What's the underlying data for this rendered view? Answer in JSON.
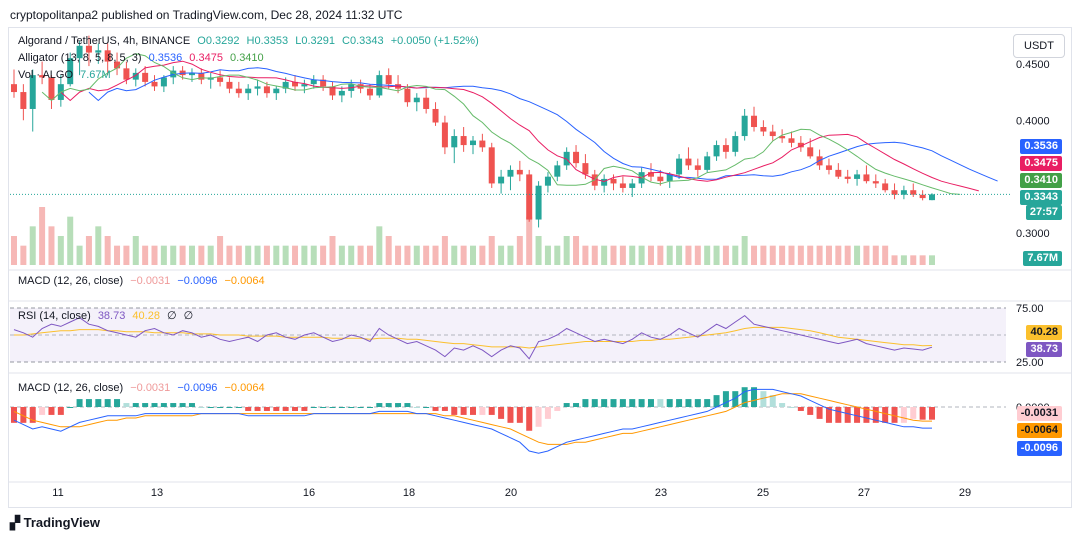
{
  "header": {
    "publisher_line": "cryptopolitanpa2 published on TradingView.com, Dec 28, 2024 11:32 UTC"
  },
  "symbol_legend": {
    "name": "Algorand / TetherUS, 4h, BINANCE",
    "open": "O0.3292",
    "high": "H0.3353",
    "low": "L0.3291",
    "close": "C0.3343",
    "change": "+0.0050 (+1.52%)"
  },
  "alligator_legend": {
    "name": "Alligator (13, 8, 5, 8, 5, 3)",
    "jaw": "0.3536",
    "teeth": "0.3475",
    "lips": "0.3410"
  },
  "volume_legend": {
    "name": "Vol · ALGO",
    "value": "7.67M"
  },
  "macd_top_legend": {
    "name": "MACD (12, 26, close)",
    "hist": "−0.0031",
    "macd": "−0.0096",
    "signal": "−0.0064"
  },
  "rsi_legend": {
    "name": "RSI (14, close)",
    "rsi": "38.73",
    "ma": "40.28",
    "v1": "∅",
    "v2": "∅"
  },
  "macd_legend": {
    "name": "MACD (12, 26, close)",
    "hist": "−0.0031",
    "macd": "−0.0096",
    "signal": "−0.0064"
  },
  "currency_button": "USDT",
  "price_tags": {
    "jaw": "0.3536",
    "teeth": "0.3475",
    "lips": "0.3410",
    "last": "0.3343",
    "countdown": "27:57",
    "volume": "7.67M",
    "rsi_ma": "40.28",
    "rsi": "38.73",
    "macd_hist": "-0.0031",
    "macd_signal": "-0.0064",
    "macd_line": "-0.0096"
  },
  "colors": {
    "up": "#26a69a",
    "down": "#ef5350",
    "jaw": "#2962ff",
    "teeth": "#e91e63",
    "lips": "#66bb6a",
    "rsi": "#7e57c2",
    "rsi_ma": "#fbc02d",
    "macd": "#2962ff",
    "signal": "#ff9800"
  },
  "branding": "TradingView",
  "chart_data": [
    {
      "type": "candlestick",
      "title": "Algorand / TetherUS, 4h, BINANCE",
      "x": [
        "11",
        "13",
        "16",
        "18",
        "20",
        "23",
        "25",
        "27",
        "29"
      ],
      "y_ticks": [
        "0.4500",
        "0.4000",
        "0.3000"
      ],
      "ylim": [
        0.285,
        0.48
      ],
      "candles": [
        [
          0.432,
          0.445,
          0.42,
          0.425
        ],
        [
          0.425,
          0.432,
          0.4,
          0.41
        ],
        [
          0.41,
          0.445,
          0.39,
          0.44
        ],
        [
          0.44,
          0.452,
          0.432,
          0.438
        ],
        [
          0.438,
          0.44,
          0.41,
          0.418
        ],
        [
          0.418,
          0.44,
          0.412,
          0.432
        ],
        [
          0.432,
          0.46,
          0.43,
          0.455
        ],
        [
          0.455,
          0.47,
          0.44,
          0.466
        ],
        [
          0.466,
          0.475,
          0.448,
          0.46
        ],
        [
          0.46,
          0.468,
          0.45,
          0.462
        ],
        [
          0.462,
          0.468,
          0.44,
          0.452
        ],
        [
          0.452,
          0.46,
          0.44,
          0.446
        ],
        [
          0.446,
          0.452,
          0.432,
          0.436
        ],
        [
          0.436,
          0.446,
          0.43,
          0.442
        ],
        [
          0.442,
          0.448,
          0.43,
          0.434
        ],
        [
          0.434,
          0.44,
          0.426,
          0.43
        ],
        [
          0.43,
          0.44,
          0.425,
          0.438
        ],
        [
          0.438,
          0.448,
          0.432,
          0.444
        ],
        [
          0.444,
          0.448,
          0.436,
          0.44
        ],
        [
          0.44,
          0.446,
          0.434,
          0.442
        ],
        [
          0.442,
          0.446,
          0.432,
          0.436
        ],
        [
          0.436,
          0.442,
          0.428,
          0.438
        ],
        [
          0.438,
          0.444,
          0.43,
          0.434
        ],
        [
          0.434,
          0.438,
          0.424,
          0.428
        ],
        [
          0.428,
          0.434,
          0.42,
          0.424
        ],
        [
          0.424,
          0.432,
          0.418,
          0.428
        ],
        [
          0.428,
          0.436,
          0.422,
          0.43
        ],
        [
          0.43,
          0.434,
          0.42,
          0.424
        ],
        [
          0.424,
          0.43,
          0.418,
          0.428
        ],
        [
          0.428,
          0.438,
          0.424,
          0.434
        ],
        [
          0.434,
          0.44,
          0.426,
          0.43
        ],
        [
          0.43,
          0.436,
          0.424,
          0.432
        ],
        [
          0.432,
          0.44,
          0.428,
          0.436
        ],
        [
          0.436,
          0.44,
          0.426,
          0.43
        ],
        [
          0.43,
          0.434,
          0.418,
          0.422
        ],
        [
          0.422,
          0.43,
          0.416,
          0.426
        ],
        [
          0.426,
          0.436,
          0.42,
          0.432
        ],
        [
          0.432,
          0.436,
          0.424,
          0.428
        ],
        [
          0.428,
          0.432,
          0.418,
          0.422
        ],
        [
          0.422,
          0.444,
          0.42,
          0.44
        ],
        [
          0.44,
          0.446,
          0.428,
          0.432
        ],
        [
          0.432,
          0.44,
          0.424,
          0.428
        ],
        [
          0.428,
          0.432,
          0.412,
          0.416
        ],
        [
          0.416,
          0.424,
          0.408,
          0.42
        ],
        [
          0.42,
          0.428,
          0.406,
          0.41
        ],
        [
          0.41,
          0.416,
          0.395,
          0.398
        ],
        [
          0.398,
          0.404,
          0.37,
          0.376
        ],
        [
          0.376,
          0.392,
          0.362,
          0.386
        ],
        [
          0.386,
          0.394,
          0.372,
          0.378
        ],
        [
          0.378,
          0.386,
          0.37,
          0.382
        ],
        [
          0.382,
          0.388,
          0.372,
          0.376
        ],
        [
          0.376,
          0.38,
          0.34,
          0.344
        ],
        [
          0.344,
          0.356,
          0.335,
          0.35
        ],
        [
          0.35,
          0.36,
          0.338,
          0.356
        ],
        [
          0.356,
          0.364,
          0.346,
          0.352
        ],
        [
          0.352,
          0.356,
          0.31,
          0.312
        ],
        [
          0.312,
          0.346,
          0.305,
          0.342
        ],
        [
          0.342,
          0.354,
          0.336,
          0.35
        ],
        [
          0.35,
          0.364,
          0.346,
          0.36
        ],
        [
          0.36,
          0.376,
          0.356,
          0.372
        ],
        [
          0.372,
          0.378,
          0.358,
          0.362
        ],
        [
          0.362,
          0.37,
          0.348,
          0.352
        ],
        [
          0.352,
          0.356,
          0.338,
          0.342
        ],
        [
          0.342,
          0.352,
          0.336,
          0.348
        ],
        [
          0.348,
          0.352,
          0.338,
          0.344
        ],
        [
          0.344,
          0.35,
          0.336,
          0.34
        ],
        [
          0.34,
          0.348,
          0.332,
          0.344
        ],
        [
          0.344,
          0.358,
          0.34,
          0.354
        ],
        [
          0.354,
          0.362,
          0.346,
          0.35
        ],
        [
          0.35,
          0.356,
          0.342,
          0.346
        ],
        [
          0.346,
          0.354,
          0.34,
          0.352
        ],
        [
          0.352,
          0.37,
          0.348,
          0.366
        ],
        [
          0.366,
          0.376,
          0.356,
          0.36
        ],
        [
          0.36,
          0.366,
          0.35,
          0.356
        ],
        [
          0.356,
          0.372,
          0.354,
          0.368
        ],
        [
          0.368,
          0.382,
          0.364,
          0.378
        ],
        [
          0.378,
          0.384,
          0.366,
          0.372
        ],
        [
          0.372,
          0.39,
          0.368,
          0.386
        ],
        [
          0.386,
          0.41,
          0.382,
          0.404
        ],
        [
          0.404,
          0.412,
          0.39,
          0.394
        ],
        [
          0.394,
          0.4,
          0.386,
          0.39
        ],
        [
          0.39,
          0.396,
          0.382,
          0.386
        ],
        [
          0.386,
          0.392,
          0.38,
          0.384
        ],
        [
          0.384,
          0.39,
          0.376,
          0.38
        ],
        [
          0.38,
          0.386,
          0.372,
          0.376
        ],
        [
          0.376,
          0.384,
          0.366,
          0.368
        ],
        [
          0.368,
          0.374,
          0.356,
          0.36
        ],
        [
          0.36,
          0.366,
          0.352,
          0.356
        ],
        [
          0.356,
          0.362,
          0.348,
          0.35
        ],
        [
          0.35,
          0.356,
          0.344,
          0.348
        ],
        [
          0.348,
          0.356,
          0.342,
          0.352
        ],
        [
          0.352,
          0.36,
          0.344,
          0.346
        ],
        [
          0.346,
          0.352,
          0.34,
          0.344
        ],
        [
          0.344,
          0.348,
          0.336,
          0.338
        ],
        [
          0.338,
          0.344,
          0.33,
          0.334
        ],
        [
          0.334,
          0.342,
          0.33,
          0.338
        ],
        [
          0.338,
          0.344,
          0.332,
          0.334
        ],
        [
          0.334,
          0.338,
          0.329,
          0.331
        ],
        [
          0.3292,
          0.3353,
          0.3291,
          0.3343
        ]
      ],
      "volume_label": "Vol · ALGO",
      "alligator": {
        "jaw_last": 0.3536,
        "teeth_last": 0.3475,
        "lips_last": 0.341
      }
    },
    {
      "type": "line",
      "title": "RSI (14, close)",
      "y_ticks": [
        "75.00",
        "25.00"
      ],
      "ylim": [
        20,
        80
      ],
      "series": [
        {
          "name": "RSI",
          "last": 38.73
        },
        {
          "name": "MA",
          "last": 40.28
        }
      ],
      "rsi": [
        55,
        52,
        48,
        56,
        60,
        58,
        62,
        66,
        60,
        58,
        54,
        52,
        50,
        48,
        54,
        56,
        52,
        50,
        54,
        52,
        48,
        50,
        46,
        44,
        46,
        48,
        44,
        50,
        52,
        48,
        46,
        50,
        52,
        48,
        44,
        46,
        50,
        48,
        44,
        56,
        50,
        46,
        42,
        44,
        40,
        36,
        30,
        38,
        36,
        40,
        36,
        30,
        36,
        40,
        38,
        28,
        44,
        46,
        50,
        56,
        52,
        48,
        44,
        46,
        44,
        42,
        46,
        52,
        48,
        46,
        50,
        56,
        52,
        48,
        54,
        60,
        56,
        62,
        68,
        60,
        58,
        56,
        54,
        52,
        50,
        48,
        46,
        44,
        42,
        44,
        46,
        42,
        40,
        38,
        36,
        38,
        37,
        36,
        38.73
      ],
      "ma": [
        50,
        50,
        51,
        52,
        53,
        54,
        54,
        55,
        55,
        55,
        54,
        54,
        53,
        53,
        53,
        52,
        52,
        52,
        52,
        51,
        51,
        51,
        50,
        50,
        50,
        49,
        49,
        49,
        49,
        48,
        48,
        48,
        48,
        48,
        47,
        47,
        47,
        47,
        46,
        47,
        47,
        47,
        46,
        46,
        45,
        44,
        43,
        42,
        42,
        41,
        40,
        39,
        39,
        39,
        39,
        38,
        39,
        40,
        41,
        42,
        43,
        44,
        44,
        44,
        44,
        44,
        44,
        45,
        45,
        46,
        46,
        47,
        48,
        49,
        50,
        51,
        52,
        54,
        56,
        57,
        57,
        57,
        57,
        56,
        55,
        54,
        52,
        50,
        48,
        47,
        46,
        45,
        44,
        43,
        42,
        41,
        41,
        40,
        40.28
      ]
    },
    {
      "type": "bar",
      "title": "MACD (12, 26, close)",
      "y_ticks": [
        "0.0000"
      ],
      "series": [
        {
          "name": "Histogram",
          "last": -0.0031
        },
        {
          "name": "MACD",
          "last": -0.0096
        },
        {
          "name": "Signal",
          "last": -0.0064
        }
      ],
      "macd": [
        -0.006,
        -0.008,
        -0.01,
        -0.009,
        -0.01,
        -0.011,
        -0.009,
        -0.007,
        -0.006,
        -0.005,
        -0.004,
        -0.004,
        -0.004,
        -0.004,
        -0.003,
        -0.003,
        -0.003,
        -0.003,
        -0.003,
        -0.003,
        -0.003,
        -0.003,
        -0.003,
        -0.003,
        -0.003,
        -0.004,
        -0.004,
        -0.004,
        -0.004,
        -0.004,
        -0.004,
        -0.004,
        -0.003,
        -0.003,
        -0.003,
        -0.003,
        -0.003,
        -0.003,
        -0.003,
        -0.002,
        -0.002,
        -0.002,
        -0.002,
        -0.003,
        -0.003,
        -0.004,
        -0.005,
        -0.006,
        -0.007,
        -0.008,
        -0.009,
        -0.01,
        -0.012,
        -0.014,
        -0.016,
        -0.02,
        -0.021,
        -0.02,
        -0.018,
        -0.016,
        -0.015,
        -0.014,
        -0.013,
        -0.012,
        -0.011,
        -0.01,
        -0.01,
        -0.009,
        -0.008,
        -0.007,
        -0.006,
        -0.005,
        -0.004,
        -0.003,
        -0.002,
        0.0,
        0.002,
        0.004,
        0.007,
        0.008,
        0.008,
        0.008,
        0.007,
        0.006,
        0.005,
        0.003,
        0.001,
        -0.001,
        -0.002,
        -0.003,
        -0.004,
        -0.005,
        -0.006,
        -0.007,
        -0.008,
        -0.009,
        -0.009,
        -0.0096,
        -0.0096
      ],
      "signal": [
        -0.002,
        -0.004,
        -0.006,
        -0.007,
        -0.008,
        -0.009,
        -0.009,
        -0.009,
        -0.008,
        -0.007,
        -0.006,
        -0.006,
        -0.005,
        -0.005,
        -0.004,
        -0.004,
        -0.004,
        -0.004,
        -0.004,
        -0.004,
        -0.003,
        -0.003,
        -0.003,
        -0.003,
        -0.003,
        -0.003,
        -0.003,
        -0.003,
        -0.003,
        -0.003,
        -0.003,
        -0.003,
        -0.003,
        -0.003,
        -0.003,
        -0.003,
        -0.003,
        -0.003,
        -0.003,
        -0.003,
        -0.003,
        -0.003,
        -0.003,
        -0.003,
        -0.003,
        -0.003,
        -0.004,
        -0.004,
        -0.005,
        -0.006,
        -0.007,
        -0.008,
        -0.009,
        -0.01,
        -0.012,
        -0.014,
        -0.016,
        -0.017,
        -0.017,
        -0.017,
        -0.016,
        -0.016,
        -0.015,
        -0.014,
        -0.013,
        -0.012,
        -0.012,
        -0.011,
        -0.01,
        -0.009,
        -0.008,
        -0.007,
        -0.006,
        -0.005,
        -0.004,
        -0.003,
        -0.002,
        0.0,
        0.002,
        0.003,
        0.004,
        0.005,
        0.006,
        0.006,
        0.006,
        0.005,
        0.004,
        0.003,
        0.002,
        0.001,
        0.0,
        -0.001,
        -0.002,
        -0.003,
        -0.004,
        -0.005,
        -0.006,
        -0.0064,
        -0.0064
      ]
    }
  ],
  "volume": [
    3,
    2,
    4,
    6,
    4,
    3,
    5,
    2,
    3,
    4,
    3,
    2,
    2,
    3,
    2,
    2,
    2,
    2,
    2,
    2,
    2,
    2,
    3,
    2,
    2,
    2,
    2,
    2,
    2,
    2,
    2,
    2,
    2,
    2,
    3,
    2,
    2,
    2,
    2,
    4,
    3,
    2,
    2,
    2,
    2,
    2,
    3,
    2,
    2,
    2,
    2,
    3,
    2,
    2,
    3,
    5,
    3,
    2,
    2,
    3,
    3,
    2,
    2,
    2,
    2,
    2,
    2,
    2,
    2,
    2,
    2,
    2,
    2,
    2,
    2,
    2,
    2,
    2,
    3,
    2,
    2,
    2,
    2,
    2,
    2,
    2,
    2,
    2,
    2,
    2,
    2,
    2,
    2,
    2,
    1,
    1,
    1,
    1,
    1
  ]
}
